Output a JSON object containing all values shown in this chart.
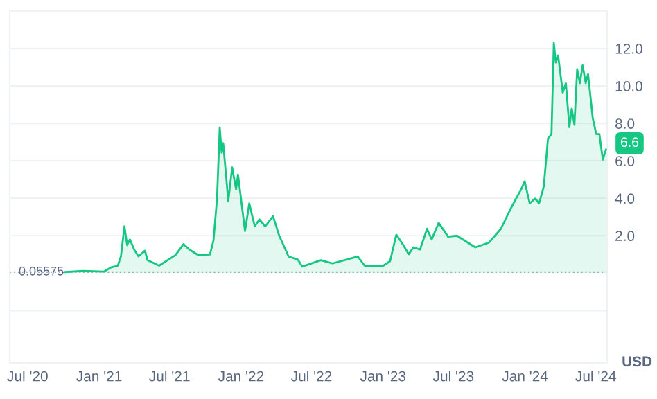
{
  "chart_data": {
    "type": "area",
    "ylabel": "USD",
    "x": [
      "2020-10-06",
      "2020-11-20",
      "2021-01-13",
      "2021-01-31",
      "2021-02-18",
      "2021-02-26",
      "2021-03-07",
      "2021-03-14",
      "2021-03-21",
      "2021-04-01",
      "2021-04-12",
      "2021-04-29",
      "2021-05-05",
      "2021-06-04",
      "2021-07-16",
      "2021-08-06",
      "2021-08-21",
      "2021-09-13",
      "2021-10-13",
      "2021-10-22",
      "2021-10-31",
      "2021-11-07",
      "2021-11-12",
      "2021-11-16",
      "2021-11-29",
      "2021-12-09",
      "2021-12-19",
      "2021-12-24",
      "2022-01-11",
      "2022-01-22",
      "2022-02-05",
      "2022-02-17",
      "2022-03-04",
      "2022-03-24",
      "2022-04-09",
      "2022-05-03",
      "2022-05-27",
      "2022-06-07",
      "2022-07-25",
      "2022-08-24",
      "2022-10-28",
      "2022-11-15",
      "2023-01-01",
      "2023-01-19",
      "2023-02-04",
      "2023-02-18",
      "2023-03-08",
      "2023-03-20",
      "2023-04-06",
      "2023-04-24",
      "2023-05-06",
      "2023-05-24",
      "2023-06-17",
      "2023-07-10",
      "2023-08-26",
      "2023-09-30",
      "2023-10-31",
      "2023-11-23",
      "2023-12-23",
      "2023-12-31",
      "2024-01-13",
      "2024-01-27",
      "2024-02-06",
      "2024-02-18",
      "2024-02-29",
      "2024-03-09",
      "2024-03-15",
      "2024-03-20",
      "2024-03-26",
      "2024-04-07",
      "2024-04-15",
      "2024-04-24",
      "2024-04-30",
      "2024-05-07",
      "2024-05-14",
      "2024-05-21",
      "2024-05-28",
      "2024-06-05",
      "2024-06-11",
      "2024-06-23",
      "2024-07-02",
      "2024-07-10",
      "2024-07-19",
      "2024-07-27"
    ],
    "series": [
      {
        "color": "#16c784",
        "values": [
          0.06,
          0.12,
          0.08,
          0.3,
          0.4,
          0.9,
          2.5,
          1.5,
          1.8,
          1.26,
          0.9,
          1.2,
          0.7,
          0.4,
          0.96,
          1.55,
          1.26,
          0.96,
          1.0,
          1.75,
          3.98,
          7.78,
          6.44,
          6.94,
          3.85,
          5.65,
          4.47,
          5.26,
          2.25,
          3.73,
          2.5,
          2.87,
          2.5,
          3.04,
          2.0,
          0.89,
          0.72,
          0.35,
          0.69,
          0.52,
          0.89,
          0.39,
          0.39,
          0.64,
          2.05,
          1.63,
          1.01,
          1.38,
          1.26,
          2.37,
          1.8,
          2.69,
          1.95,
          2.0,
          1.38,
          1.63,
          2.37,
          3.36,
          4.52,
          4.9,
          3.73,
          3.98,
          3.73,
          4.6,
          7.19,
          7.43,
          12.3,
          11.26,
          11.63,
          9.65,
          10.15,
          7.8,
          8.79,
          7.93,
          10.9,
          10.15,
          11.1,
          10.15,
          10.64,
          8.3,
          7.43,
          7.43,
          6.07,
          6.6
        ]
      }
    ],
    "xlim": [
      "2020-05-16",
      "2024-07-30"
    ],
    "xticks": [
      {
        "value": "2020-07-01",
        "label": "Jul '20"
      },
      {
        "value": "2021-01-01",
        "label": "Jan '21"
      },
      {
        "value": "2021-07-01",
        "label": "Jul '21"
      },
      {
        "value": "2022-01-01",
        "label": "Jan '22"
      },
      {
        "value": "2022-07-01",
        "label": "Jul '22"
      },
      {
        "value": "2023-01-01",
        "label": "Jan '23"
      },
      {
        "value": "2023-07-01",
        "label": "Jul '23"
      },
      {
        "value": "2024-01-01",
        "label": "Jan '24"
      },
      {
        "value": "2024-07-01",
        "label": "Jul '24"
      }
    ],
    "ylim": [
      -4.8,
      14
    ],
    "yticks": [
      {
        "value": -2,
        "label": null
      },
      {
        "value": 2,
        "label": "2.0"
      },
      {
        "value": 4,
        "label": "4.0"
      },
      {
        "value": 6,
        "label": "6.0"
      },
      {
        "value": 8,
        "label": "8.0"
      },
      {
        "value": 10,
        "label": "10.0"
      },
      {
        "value": 12,
        "label": "12.0"
      }
    ],
    "ref_lines": [
      {
        "axis": "y",
        "value": 0.05575,
        "label": "0.05575",
        "color": "#a6b0c3",
        "line_style": "dotted"
      }
    ],
    "annotations": [
      {
        "text": "6.6",
        "x": "2024-07-27",
        "y": 6.6
      }
    ],
    "grid": "y"
  }
}
